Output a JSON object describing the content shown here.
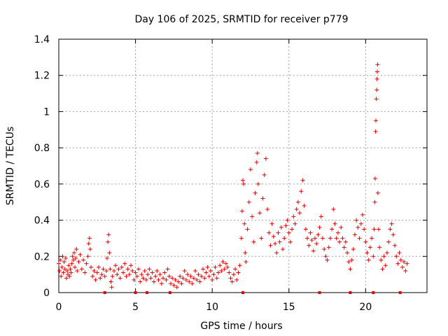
{
  "chart_data": {
    "type": "scatter",
    "title": "Day 106 of 2025, SRMTID for receiver p779",
    "xlabel": "GPS time / hours",
    "ylabel": "SRMTID / TECUs",
    "xlim": [
      0,
      24
    ],
    "ylim": [
      0,
      1.4
    ],
    "x_ticks": [
      0,
      5,
      10,
      15,
      20
    ],
    "x_tick_labels": [
      "0",
      "5",
      "10",
      "15",
      "20"
    ],
    "y_ticks": [
      0,
      0.2,
      0.4,
      0.6,
      0.8,
      1.0,
      1.2,
      1.4
    ],
    "y_tick_labels": [
      "0",
      "0.2",
      "0.4",
      "0.6",
      "0.8",
      "1",
      "1.2",
      "1.4"
    ],
    "grid": true,
    "marker": "+",
    "color": "#e00000",
    "series": [
      {
        "name": "SRMTID",
        "points": [
          [
            0.0,
            0.16
          ],
          [
            0.05,
            0.12
          ],
          [
            0.1,
            0.18
          ],
          [
            0.15,
            0.09
          ],
          [
            0.2,
            0.14
          ],
          [
            0.25,
            0.2
          ],
          [
            0.3,
            0.11
          ],
          [
            0.35,
            0.17
          ],
          [
            0.4,
            0.13
          ],
          [
            0.45,
            0.19
          ],
          [
            0.5,
            0.08
          ],
          [
            0.55,
            0.12
          ],
          [
            0.6,
            0.1
          ],
          [
            0.65,
            0.15
          ],
          [
            0.7,
            0.09
          ],
          [
            0.75,
            0.13
          ],
          [
            0.8,
            0.11
          ],
          [
            0.85,
            0.16
          ],
          [
            0.9,
            0.2
          ],
          [
            0.95,
            0.18
          ],
          [
            1.0,
            0.22
          ],
          [
            1.05,
            0.14
          ],
          [
            1.1,
            0.19
          ],
          [
            1.15,
            0.24
          ],
          [
            1.2,
            0.12
          ],
          [
            1.3,
            0.17
          ],
          [
            1.4,
            0.21
          ],
          [
            1.5,
            0.13
          ],
          [
            1.6,
            0.18
          ],
          [
            1.7,
            0.11
          ],
          [
            1.8,
            0.16
          ],
          [
            1.9,
            0.2
          ],
          [
            1.95,
            0.27
          ],
          [
            2.0,
            0.3
          ],
          [
            2.05,
            0.24
          ],
          [
            2.1,
            0.14
          ],
          [
            2.2,
            0.09
          ],
          [
            2.3,
            0.12
          ],
          [
            2.4,
            0.07
          ],
          [
            2.5,
            0.11
          ],
          [
            2.6,
            0.14
          ],
          [
            2.7,
            0.08
          ],
          [
            2.8,
            0.1
          ],
          [
            2.9,
            0.13
          ],
          [
            3.0,
            0.09
          ],
          [
            3.1,
            0.12
          ],
          [
            3.15,
            0.19
          ],
          [
            3.2,
            0.28
          ],
          [
            3.25,
            0.32
          ],
          [
            3.3,
            0.22
          ],
          [
            3.35,
            0.13
          ],
          [
            3.4,
            0.06
          ],
          [
            3.45,
            0.03
          ],
          [
            3.5,
            0.09
          ],
          [
            3.6,
            0.12
          ],
          [
            3.7,
            0.15
          ],
          [
            3.8,
            0.1
          ],
          [
            3.9,
            0.13
          ],
          [
            4.0,
            0.08
          ],
          [
            4.1,
            0.14
          ],
          [
            4.2,
            0.11
          ],
          [
            4.3,
            0.16
          ],
          [
            4.4,
            0.09
          ],
          [
            4.5,
            0.13
          ],
          [
            4.6,
            0.1
          ],
          [
            4.7,
            0.15
          ],
          [
            4.8,
            0.12
          ],
          [
            4.9,
            0.07
          ],
          [
            5.0,
            0.11
          ],
          [
            5.1,
            0.09
          ],
          [
            5.2,
            0.13
          ],
          [
            5.3,
            0.06
          ],
          [
            5.4,
            0.1
          ],
          [
            5.5,
            0.08
          ],
          [
            5.6,
            0.12
          ],
          [
            5.7,
            0.07
          ],
          [
            5.8,
            0.1
          ],
          [
            5.9,
            0.13
          ],
          [
            6.0,
            0.08
          ],
          [
            6.1,
            0.11
          ],
          [
            6.2,
            0.06
          ],
          [
            6.3,
            0.09
          ],
          [
            6.4,
            0.12
          ],
          [
            6.5,
            0.07
          ],
          [
            6.6,
            0.1
          ],
          [
            6.7,
            0.05
          ],
          [
            6.8,
            0.08
          ],
          [
            6.9,
            0.11
          ],
          [
            7.0,
            0.07
          ],
          [
            7.1,
            0.13
          ],
          [
            7.2,
            0.09
          ],
          [
            7.3,
            0.05
          ],
          [
            7.4,
            0.08
          ],
          [
            7.5,
            0.04
          ],
          [
            7.6,
            0.07
          ],
          [
            7.7,
            0.03
          ],
          [
            7.8,
            0.06
          ],
          [
            7.9,
            0.09
          ],
          [
            8.0,
            0.05
          ],
          [
            8.1,
            0.08
          ],
          [
            8.2,
            0.12
          ],
          [
            8.3,
            0.07
          ],
          [
            8.4,
            0.1
          ],
          [
            8.5,
            0.06
          ],
          [
            8.6,
            0.09
          ],
          [
            8.7,
            0.05
          ],
          [
            8.8,
            0.08
          ],
          [
            8.9,
            0.12
          ],
          [
            9.0,
            0.07
          ],
          [
            9.1,
            0.1
          ],
          [
            9.2,
            0.06
          ],
          [
            9.3,
            0.09
          ],
          [
            9.4,
            0.13
          ],
          [
            9.5,
            0.08
          ],
          [
            9.6,
            0.11
          ],
          [
            9.7,
            0.14
          ],
          [
            9.8,
            0.09
          ],
          [
            9.9,
            0.12
          ],
          [
            10.0,
            0.07
          ],
          [
            10.1,
            0.1
          ],
          [
            10.2,
            0.14
          ],
          [
            10.3,
            0.08
          ],
          [
            10.4,
            0.11
          ],
          [
            10.5,
            0.15
          ],
          [
            10.6,
            0.12
          ],
          [
            10.7,
            0.17
          ],
          [
            10.8,
            0.13
          ],
          [
            10.9,
            0.16
          ],
          [
            11.0,
            0.14
          ],
          [
            11.1,
            0.11
          ],
          [
            11.2,
            0.08
          ],
          [
            11.3,
            0.06
          ],
          [
            11.4,
            0.1
          ],
          [
            11.5,
            0.13
          ],
          [
            11.6,
            0.07
          ],
          [
            11.7,
            0.11
          ],
          [
            11.8,
            0.15
          ],
          [
            11.9,
            0.3
          ],
          [
            11.95,
            0.45
          ],
          [
            12.0,
            0.62
          ],
          [
            12.05,
            0.6
          ],
          [
            12.1,
            0.38
          ],
          [
            12.15,
            0.22
          ],
          [
            12.2,
            0.17
          ],
          [
            12.3,
            0.35
          ],
          [
            12.4,
            0.5
          ],
          [
            12.5,
            0.68
          ],
          [
            12.6,
            0.42
          ],
          [
            12.7,
            0.28
          ],
          [
            12.8,
            0.55
          ],
          [
            12.9,
            0.72
          ],
          [
            12.95,
            0.77
          ],
          [
            13.0,
            0.6
          ],
          [
            13.1,
            0.44
          ],
          [
            13.2,
            0.3
          ],
          [
            13.3,
            0.52
          ],
          [
            13.4,
            0.65
          ],
          [
            13.5,
            0.74
          ],
          [
            13.6,
            0.46
          ],
          [
            13.7,
            0.33
          ],
          [
            13.8,
            0.26
          ],
          [
            13.9,
            0.38
          ],
          [
            14.0,
            0.31
          ],
          [
            14.1,
            0.27
          ],
          [
            14.2,
            0.22
          ],
          [
            14.3,
            0.33
          ],
          [
            14.4,
            0.28
          ],
          [
            14.5,
            0.36
          ],
          [
            14.6,
            0.24
          ],
          [
            14.7,
            0.3
          ],
          [
            14.8,
            0.37
          ],
          [
            14.9,
            0.4
          ],
          [
            15.0,
            0.33
          ],
          [
            15.1,
            0.28
          ],
          [
            15.2,
            0.35
          ],
          [
            15.3,
            0.42
          ],
          [
            15.4,
            0.38
          ],
          [
            15.5,
            0.46
          ],
          [
            15.6,
            0.5
          ],
          [
            15.7,
            0.44
          ],
          [
            15.8,
            0.56
          ],
          [
            15.9,
            0.62
          ],
          [
            16.0,
            0.48
          ],
          [
            16.1,
            0.35
          ],
          [
            16.2,
            0.3
          ],
          [
            16.3,
            0.26
          ],
          [
            16.4,
            0.33
          ],
          [
            16.5,
            0.29
          ],
          [
            16.6,
            0.23
          ],
          [
            16.7,
            0.3
          ],
          [
            16.8,
            0.27
          ],
          [
            16.9,
            0.32
          ],
          [
            17.0,
            0.36
          ],
          [
            17.1,
            0.42
          ],
          [
            17.2,
            0.3
          ],
          [
            17.3,
            0.24
          ],
          [
            17.4,
            0.2
          ],
          [
            17.5,
            0.18
          ],
          [
            17.6,
            0.25
          ],
          [
            17.7,
            0.3
          ],
          [
            17.8,
            0.35
          ],
          [
            17.9,
            0.46
          ],
          [
            18.0,
            0.38
          ],
          [
            18.1,
            0.3
          ],
          [
            18.2,
            0.33
          ],
          [
            18.3,
            0.28
          ],
          [
            18.4,
            0.36
          ],
          [
            18.5,
            0.3
          ],
          [
            18.6,
            0.25
          ],
          [
            18.7,
            0.28
          ],
          [
            18.8,
            0.22
          ],
          [
            18.9,
            0.17
          ],
          [
            19.0,
            0.13
          ],
          [
            19.1,
            0.18
          ],
          [
            19.2,
            0.24
          ],
          [
            19.3,
            0.32
          ],
          [
            19.4,
            0.4
          ],
          [
            19.5,
            0.36
          ],
          [
            19.6,
            0.3
          ],
          [
            19.7,
            0.38
          ],
          [
            19.8,
            0.43
          ],
          [
            19.9,
            0.35
          ],
          [
            20.0,
            0.28
          ],
          [
            20.1,
            0.22
          ],
          [
            20.2,
            0.18
          ],
          [
            20.3,
            0.25
          ],
          [
            20.4,
            0.3
          ],
          [
            20.5,
            0.2
          ],
          [
            20.55,
            0.35
          ],
          [
            20.6,
            0.5
          ],
          [
            20.62,
            0.63
          ],
          [
            20.65,
            0.89
          ],
          [
            20.67,
            0.95
          ],
          [
            20.7,
            1.07
          ],
          [
            20.72,
            1.12
          ],
          [
            20.74,
            1.18
          ],
          [
            20.76,
            1.22
          ],
          [
            20.78,
            1.26
          ],
          [
            20.8,
            0.55
          ],
          [
            20.85,
            0.35
          ],
          [
            20.9,
            0.25
          ],
          [
            21.0,
            0.18
          ],
          [
            21.1,
            0.13
          ],
          [
            21.2,
            0.2
          ],
          [
            21.3,
            0.15
          ],
          [
            21.4,
            0.22
          ],
          [
            21.5,
            0.28
          ],
          [
            21.6,
            0.35
          ],
          [
            21.7,
            0.38
          ],
          [
            21.8,
            0.32
          ],
          [
            21.9,
            0.26
          ],
          [
            22.0,
            0.2
          ],
          [
            22.1,
            0.16
          ],
          [
            22.2,
            0.22
          ],
          [
            22.3,
            0.18
          ],
          [
            22.4,
            0.14
          ],
          [
            22.5,
            0.17
          ],
          [
            22.6,
            0.12
          ],
          [
            22.7,
            0.16
          ]
        ]
      }
    ],
    "data_gaps_x": [
      3.0,
      5.0,
      5.75,
      7.25,
      12.0,
      17.0,
      19.0,
      20.5,
      22.25
    ]
  }
}
